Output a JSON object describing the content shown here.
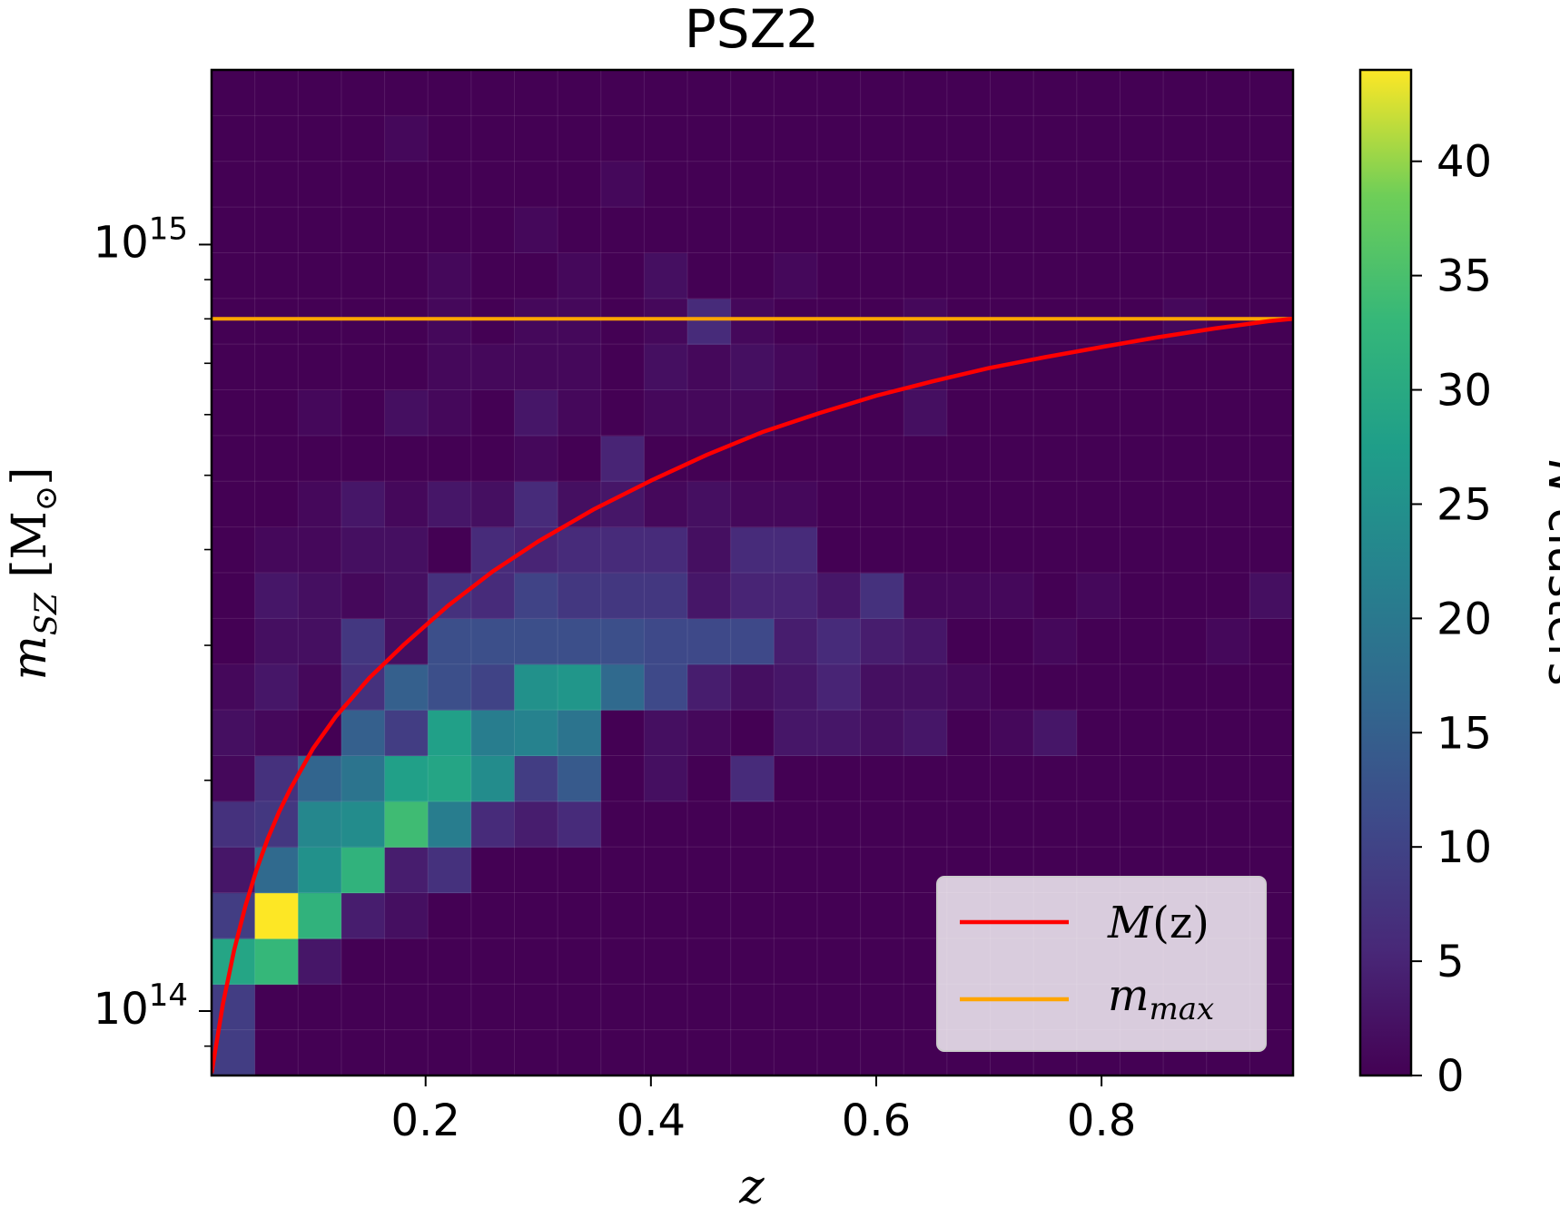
{
  "chart_data": {
    "type": "heatmap",
    "title": "PSZ2",
    "xlabel": "z",
    "ylabel": "m_SZ [M_⊙]",
    "ylabel_parts": {
      "symbol": "m",
      "subscript": "SZ",
      "unit_open": " [M",
      "unit_sub": "⊙",
      "unit_close": "]"
    },
    "xlim": [
      0.01,
      0.97
    ],
    "x_ticks": [
      0.2,
      0.4,
      0.6,
      0.8
    ],
    "x_tick_labels": [
      "0.2",
      "0.4",
      "0.6",
      "0.8"
    ],
    "y_scale": "log",
    "ylim": [
      82400000000000.0,
      1690000000000000.0
    ],
    "y_ticks": [
      100000000000000.0,
      1000000000000000.0
    ],
    "y_tick_labels": [
      {
        "base": "10",
        "exp": "14"
      },
      {
        "base": "10",
        "exp": "15"
      }
    ],
    "colorbar": {
      "label": "N clusters",
      "label_parts": {
        "italic": "N",
        "rest": " clusters"
      },
      "range": [
        0,
        44
      ],
      "ticks": [
        0,
        5,
        10,
        15,
        20,
        25,
        30,
        35,
        40
      ],
      "tick_labels": [
        "0",
        "5",
        "10",
        "15",
        "20",
        "25",
        "30",
        "35",
        "40"
      ],
      "colormap": "viridis"
    },
    "histogram": {
      "nx": 25,
      "ny": 22,
      "row_order": "bottom-to-top",
      "counts": [
        [
          9,
          0,
          0,
          0,
          0,
          0,
          0,
          0,
          0,
          0,
          0,
          0,
          0,
          0,
          0,
          0,
          0,
          0,
          0,
          0,
          0,
          0,
          0,
          0,
          0
        ],
        [
          9,
          0,
          0,
          0,
          0,
          0,
          0,
          0,
          0,
          0,
          0,
          0,
          0,
          0,
          0,
          0,
          0,
          0,
          0,
          0,
          0,
          0,
          0,
          0,
          0
        ],
        [
          29,
          33,
          3,
          0,
          0,
          0,
          0,
          0,
          0,
          0,
          0,
          0,
          0,
          0,
          0,
          0,
          0,
          0,
          0,
          0,
          0,
          0,
          0,
          0,
          0
        ],
        [
          9,
          44,
          32,
          4,
          2,
          0,
          0,
          0,
          0,
          0,
          0,
          0,
          0,
          0,
          0,
          0,
          0,
          0,
          0,
          0,
          0,
          0,
          0,
          0,
          0
        ],
        [
          3,
          17,
          25,
          32,
          4,
          7,
          0,
          0,
          0,
          0,
          0,
          0,
          0,
          0,
          0,
          0,
          0,
          0,
          0,
          0,
          0,
          0,
          0,
          0,
          0
        ],
        [
          7,
          8,
          23,
          24,
          34,
          21,
          6,
          4,
          6,
          0,
          0,
          0,
          0,
          0,
          0,
          0,
          0,
          0,
          0,
          0,
          0,
          0,
          0,
          0,
          0
        ],
        [
          1,
          7,
          16,
          19,
          28,
          29,
          24,
          9,
          14,
          0,
          2,
          0,
          6,
          0,
          0,
          0,
          0,
          0,
          0,
          0,
          0,
          0,
          0,
          0,
          0
        ],
        [
          2,
          1,
          0,
          15,
          9,
          28,
          21,
          22,
          19,
          0,
          2,
          1,
          0,
          3,
          3,
          2,
          3,
          0,
          1,
          3,
          0,
          0,
          0,
          0,
          0
        ],
        [
          1,
          3,
          1,
          7,
          15,
          12,
          10,
          25,
          26,
          17,
          11,
          4,
          2,
          3,
          5,
          2,
          2,
          1,
          0,
          0,
          0,
          0,
          0,
          0,
          0
        ],
        [
          0,
          2,
          2,
          8,
          2,
          12,
          12,
          12,
          12,
          12,
          11,
          11,
          11,
          4,
          6,
          4,
          3,
          0,
          0,
          1,
          0,
          0,
          0,
          1,
          0
        ],
        [
          0,
          3,
          2,
          1,
          2,
          7,
          6,
          10,
          8,
          8,
          8,
          3,
          5,
          5,
          3,
          7,
          1,
          1,
          1,
          0,
          1,
          0,
          0,
          0,
          2
        ],
        [
          0,
          1,
          1,
          2,
          2,
          0,
          6,
          5,
          6,
          6,
          6,
          2,
          6,
          6,
          0,
          0,
          0,
          0,
          0,
          0,
          0,
          0,
          0,
          0,
          0
        ],
        [
          0,
          0,
          1,
          3,
          1,
          3,
          2,
          6,
          2,
          3,
          1,
          2,
          1,
          1,
          0,
          0,
          0,
          0,
          0,
          0,
          0,
          0,
          0,
          0,
          0
        ],
        [
          0,
          0,
          0,
          0,
          0,
          0,
          0,
          1,
          0,
          5,
          0,
          0,
          0,
          0,
          0,
          0,
          0,
          0,
          0,
          0,
          0,
          0,
          0,
          0,
          0
        ],
        [
          0,
          0,
          1,
          0,
          2,
          1,
          0,
          3,
          1,
          0,
          1,
          1,
          1,
          0,
          0,
          0,
          2,
          0,
          0,
          0,
          0,
          0,
          0,
          0,
          0
        ],
        [
          0,
          0,
          0,
          0,
          0,
          1,
          1,
          1,
          1,
          0,
          2,
          1,
          2,
          1,
          0,
          0,
          1,
          0,
          0,
          0,
          0,
          0,
          0,
          0,
          0
        ],
        [
          0,
          0,
          0,
          0,
          0,
          1,
          0,
          1,
          1,
          0,
          1,
          6,
          1,
          0,
          0,
          0,
          1,
          0,
          0,
          0,
          0,
          0,
          1,
          0,
          0
        ],
        [
          0,
          0,
          0,
          0,
          0,
          1,
          0,
          0,
          1,
          0,
          2,
          0,
          0,
          1,
          0,
          0,
          0,
          0,
          0,
          0,
          0,
          0,
          0,
          0,
          0
        ],
        [
          0,
          0,
          0,
          0,
          0,
          0,
          0,
          1,
          0,
          0,
          0,
          0,
          0,
          0,
          0,
          0,
          0,
          0,
          0,
          0,
          0,
          0,
          0,
          0,
          0
        ],
        [
          0,
          0,
          0,
          0,
          0,
          0,
          0,
          0,
          0,
          1,
          0,
          0,
          0,
          0,
          0,
          0,
          0,
          0,
          0,
          0,
          0,
          0,
          0,
          0,
          0
        ],
        [
          0,
          0,
          0,
          0,
          1,
          0,
          0,
          0,
          0,
          0,
          0,
          0,
          0,
          0,
          0,
          0,
          0,
          0,
          0,
          0,
          0,
          0,
          0,
          0,
          0
        ],
        [
          0,
          0,
          0,
          0,
          0,
          0,
          0,
          0,
          0,
          0,
          0,
          0,
          0,
          0,
          0,
          0,
          0,
          0,
          0,
          0,
          0,
          0,
          0,
          0,
          0
        ]
      ]
    },
    "series": [
      {
        "name": "M(z)",
        "label_parts": {
          "italic": "M",
          "rest": "(z)"
        },
        "color": "#ff0000",
        "z": [
          0.01,
          0.02,
          0.03,
          0.04,
          0.05,
          0.06,
          0.07,
          0.08,
          0.1,
          0.12,
          0.15,
          0.18,
          0.22,
          0.26,
          0.3,
          0.35,
          0.4,
          0.45,
          0.5,
          0.55,
          0.6,
          0.65,
          0.7,
          0.75,
          0.8,
          0.85,
          0.9,
          0.95,
          0.97
        ],
        "m": [
          83000000000000.0,
          102000000000000.0,
          120000000000000.0,
          137000000000000.0,
          153000000000000.0,
          168000000000000.0,
          182000000000000.0,
          195000000000000.0,
          220000000000000.0,
          242000000000000.0,
          272000000000000.0,
          300000000000000.0,
          338000000000000.0,
          375000000000000.0,
          410000000000000.0,
          452000000000000.0,
          492000000000000.0,
          532000000000000.0,
          570000000000000.0,
          603000000000000.0,
          635000000000000.0,
          663000000000000.0,
          690000000000000.0,
          713000000000000.0,
          735000000000000.0,
          757000000000000.0,
          777000000000000.0,
          795000000000000.0,
          800000000000000.0
        ]
      },
      {
        "name": "m_max",
        "label_parts": {
          "italic": "m",
          "subscript": "max"
        },
        "color": "#ffa500",
        "value": 800000000000000.0
      }
    ],
    "legend": {
      "position": "lower right",
      "entries": [
        "M(z)",
        "m_max"
      ]
    }
  }
}
